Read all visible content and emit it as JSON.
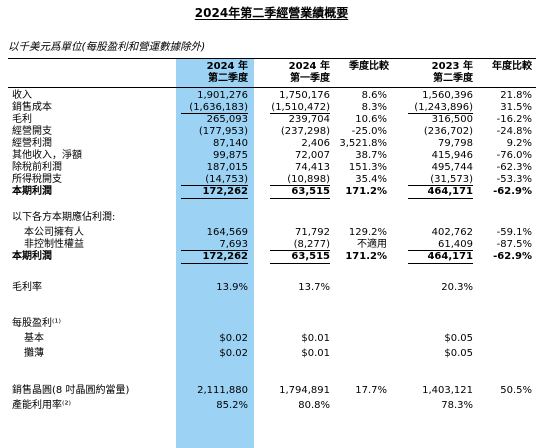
{
  "title": "2024年第二季經營業績概要",
  "subtitle": "以千美元爲單位(每股盈利和營運數據除外)",
  "headers": {
    "c1_line1": "2024 年",
    "c1_line2": "第二季度",
    "c2_line1": "2024 年",
    "c2_line2": "第一季度",
    "c3_line1": "季度比較",
    "c4_line1": "2023 年",
    "c4_line2": "第二季度",
    "c5_line1": "年度比較"
  },
  "rows": [
    {
      "label": "收入",
      "c1": "1,901,276",
      "c2": "1,750,176",
      "c3": "8.6%",
      "c4": "1,560,396",
      "c5": "21.8%"
    },
    {
      "label": "銷售成本",
      "c1": "(1,636,183)",
      "c2": "(1,510,472)",
      "c3": "8.3%",
      "c4": "(1,243,896)",
      "c5": "31.5%"
    },
    {
      "label": "毛利",
      "c1": "265,093",
      "c2": "239,704",
      "c3": "10.6%",
      "c4": "316,500",
      "c5": "-16.2%"
    },
    {
      "label": "經營開支",
      "c1": "(177,953)",
      "c2": "(237,298)",
      "c3": "-25.0%",
      "c4": "(236,702)",
      "c5": "-24.8%"
    },
    {
      "label": "經營利潤",
      "c1": "87,140",
      "c2": "2,406",
      "c3": "3,521.8%",
      "c4": "79,798",
      "c5": "9.2%"
    },
    {
      "label": "其他收入，淨額",
      "c1": "99,875",
      "c2": "72,007",
      "c3": "38.7%",
      "c4": "415,946",
      "c5": "-76.0%"
    },
    {
      "label": "除稅前利潤",
      "c1": "187,015",
      "c2": "74,413",
      "c3": "151.3%",
      "c4": "495,744",
      "c5": "-62.3%"
    },
    {
      "label": "所得稅開支",
      "c1": "(14,753)",
      "c2": "(10,898)",
      "c3": "35.4%",
      "c4": "(31,573)",
      "c5": "-53.3%"
    },
    {
      "label": "本期利潤",
      "c1": "172,262",
      "c2": "63,515",
      "c3": "171.2%",
      "c4": "464,171",
      "c5": "-62.9%"
    },
    {
      "label": "以下各方本期應佔利潤:"
    },
    {
      "label": "本公司擁有人",
      "c1": "164,569",
      "c2": "71,792",
      "c3": "129.2%",
      "c4": "402,762",
      "c5": "-59.1%"
    },
    {
      "label": "非控制性權益",
      "c1": "7,693",
      "c2": "(8,277)",
      "c3": "不適用",
      "c4": "61,409",
      "c5": "-87.5%"
    },
    {
      "label": "本期利潤",
      "c1": "172,262",
      "c2": "63,515",
      "c3": "171.2%",
      "c4": "464,171",
      "c5": "-62.9%"
    },
    {
      "label": "毛利率",
      "c1": "13.9%",
      "c2": "13.7%",
      "c4": "20.3%"
    },
    {
      "label": "每股盈利⁽¹⁾"
    },
    {
      "label": "基本",
      "c1": "$0.02",
      "c2": "$0.01",
      "c4": "$0.05"
    },
    {
      "label": "攤薄",
      "c1": "$0.02",
      "c2": "$0.01",
      "c4": "$0.05"
    },
    {
      "label": "銷售晶圓(8 吋晶圓約當量)",
      "c1": "2,111,880",
      "c2": "1,794,891",
      "c3": "17.7%",
      "c4": "1,403,121",
      "c5": "50.5%"
    },
    {
      "label": "產能利用率⁽²⁾",
      "c1": "85.2%",
      "c2": "80.8%",
      "c4": "78.3%"
    }
  ]
}
